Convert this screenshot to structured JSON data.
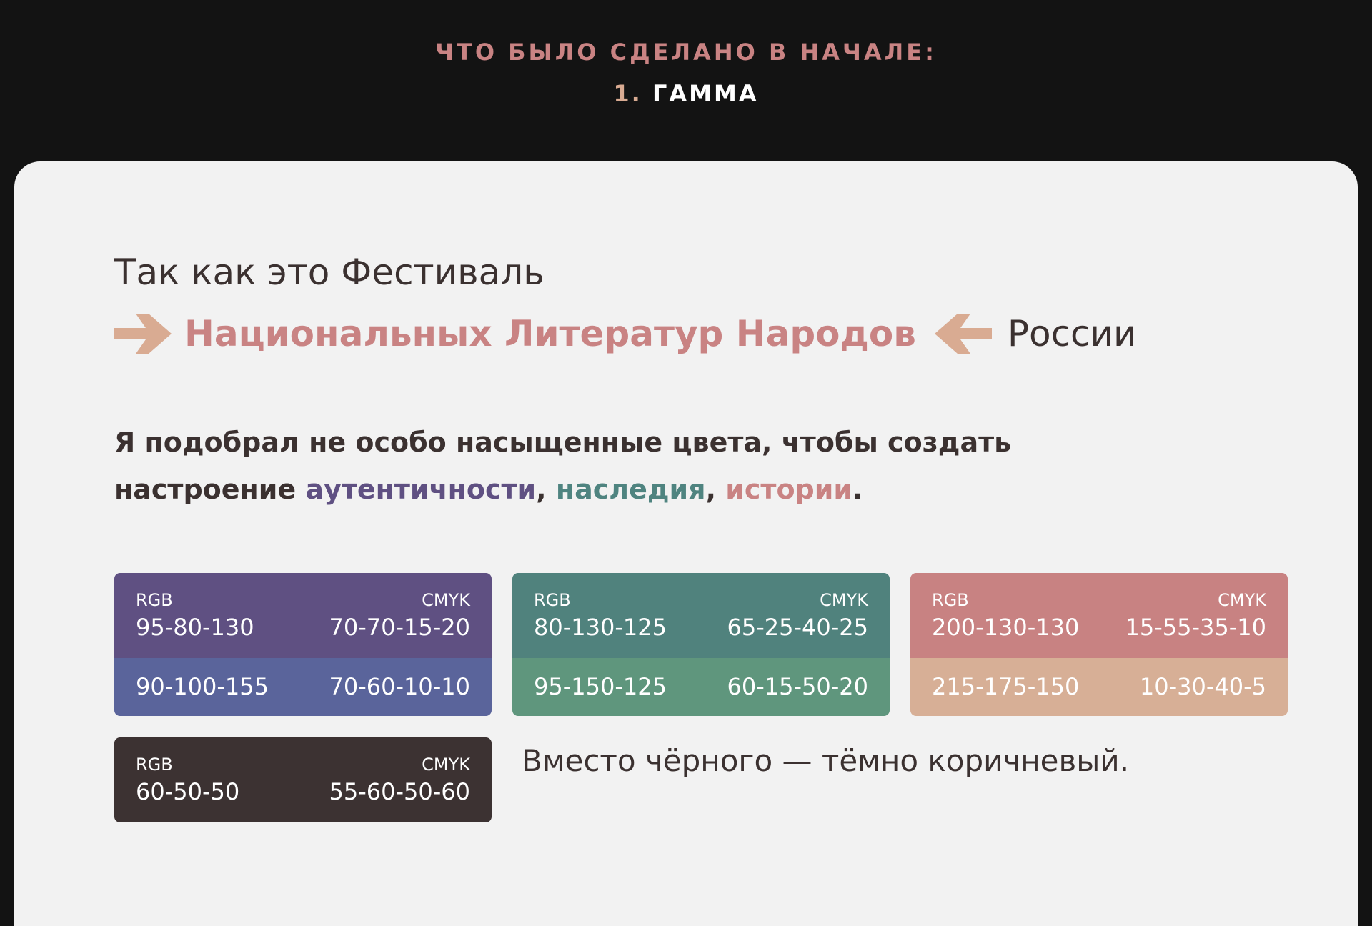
{
  "header": {
    "eyebrow": "ЧТО БЫЛО СДЕЛАНО В НАЧАЛЕ:",
    "section_number": "1.",
    "section_title": "ГАММА"
  },
  "intro": {
    "line1": "Так как это Фестиваль",
    "highlight": "Национальных Литератур Народов",
    "line2_end": "России",
    "arrow_icon": "arrow-right-icon",
    "arrow_color": "#d9ab92"
  },
  "mood": {
    "text_before": "Я подобрал не особо насыщенные цвета, чтобы создать настроение ",
    "word1": "аутентичности",
    "sep1": ", ",
    "word2": "наследия",
    "sep2": ", ",
    "word3": "истории",
    "end": "."
  },
  "swatches": [
    {
      "main": {
        "color": "#5f5082",
        "rgb_label": "RGB",
        "cmyk_label": "CMYK",
        "rgb": "95-80-130",
        "cmyk": "70-70-15-20"
      },
      "alt": {
        "color": "#5a649b",
        "rgb": "90-100-155",
        "cmyk": "70-60-10-10"
      }
    },
    {
      "main": {
        "color": "#50827d",
        "rgb_label": "RGB",
        "cmyk_label": "CMYK",
        "rgb": "80-130-125",
        "cmyk": "65-25-40-25"
      },
      "alt": {
        "color": "#5f967d",
        "rgb": "95-150-125",
        "cmyk": "60-15-50-20"
      }
    },
    {
      "main": {
        "color": "#c88282",
        "rgb_label": "RGB",
        "cmyk_label": "CMYK",
        "rgb": "200-130-130",
        "cmyk": "15-55-35-10"
      },
      "alt": {
        "color": "#d7af96",
        "rgb": "215-175-150",
        "cmyk": "10-30-40-5"
      }
    },
    {
      "main": {
        "color": "#3c3232",
        "rgb_label": "RGB",
        "cmyk_label": "CMYK",
        "rgb": "60-50-50",
        "cmyk": "55-60-50-60"
      }
    }
  ],
  "brown_note": "Вместо чёрного — тёмно коричневый."
}
